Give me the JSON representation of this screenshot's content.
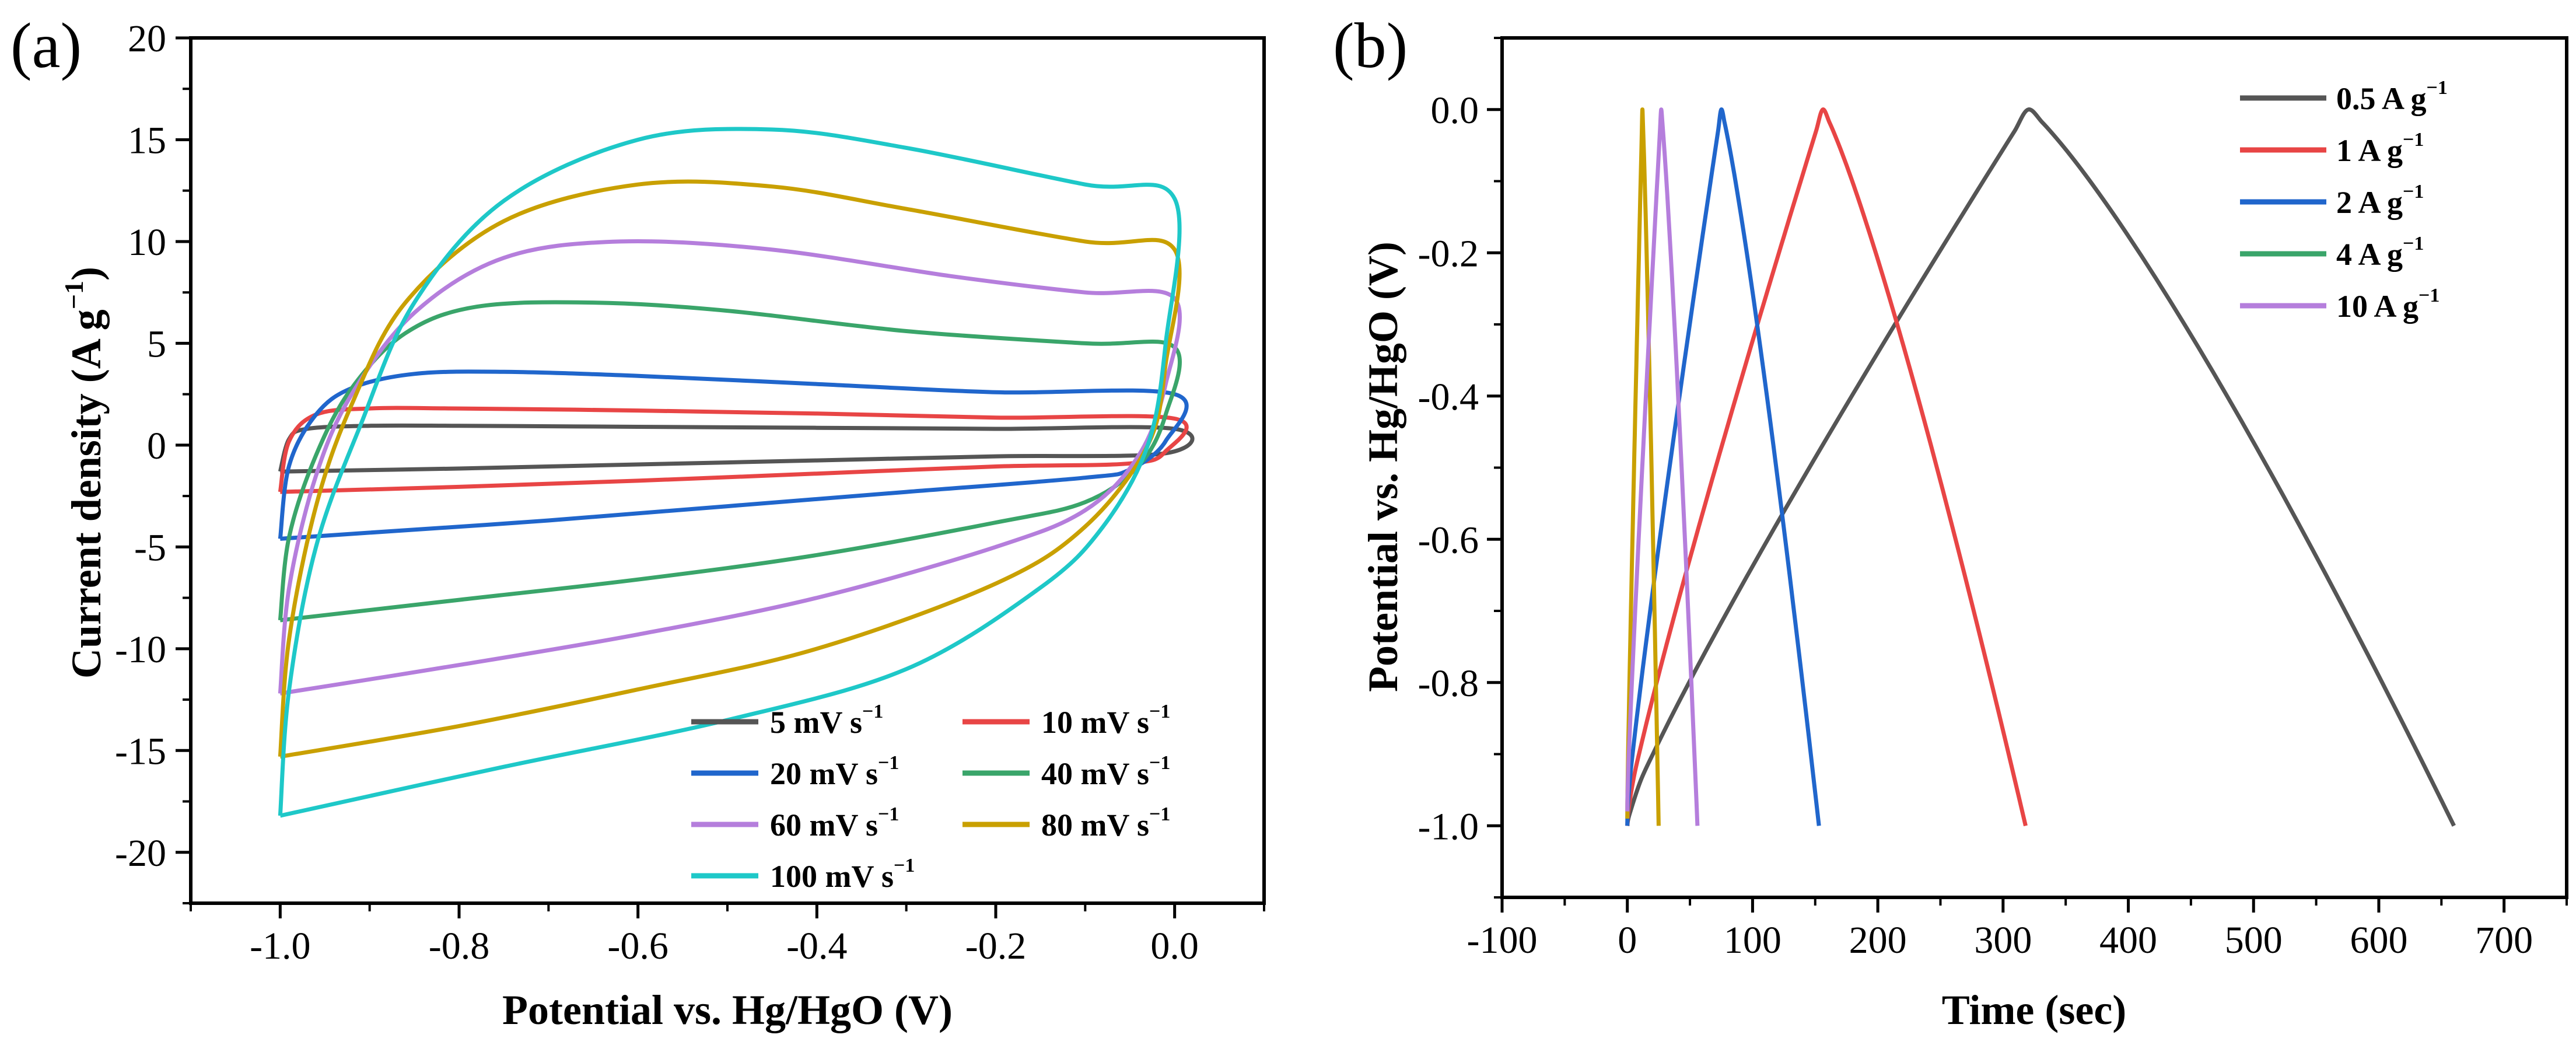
{
  "chart_data": [
    {
      "type": "line",
      "panel_label": "(a)",
      "xlabel": "Potential vs. Hg/HgO (V)",
      "ylabel": "Current density (A g",
      "ylabel_sup": "−1",
      "ylabel_end": ")",
      "xlim": [
        -1.1,
        0.1
      ],
      "ylim": [
        -22.5,
        20
      ],
      "xticks": [
        -1.0,
        -0.8,
        -0.6,
        -0.4,
        -0.2,
        0.0
      ],
      "xtick_labels": [
        "-1.0",
        "-0.8",
        "-0.6",
        "-0.4",
        "-0.2",
        "0.0"
      ],
      "yticks": [
        -20,
        -15,
        -10,
        -5,
        0,
        5,
        10,
        15,
        20
      ],
      "ytick_labels": [
        "-20",
        "-15",
        "-10",
        "-5",
        "0",
        "5",
        "10",
        "15",
        "20"
      ],
      "legend_position": "bottom-right",
      "series": [
        {
          "name": "5 mV s",
          "unit_sup": "−1",
          "color": "#555555",
          "anodic": [
            [
              -1.0,
              -1.3
            ],
            [
              -0.99,
              0.3
            ],
            [
              -0.97,
              0.8
            ],
            [
              -0.9,
              0.95
            ],
            [
              -0.8,
              0.95
            ],
            [
              -0.6,
              0.9
            ],
            [
              -0.4,
              0.85
            ],
            [
              -0.2,
              0.8
            ],
            [
              0.0,
              0.8
            ]
          ],
          "cathodic": [
            [
              0.0,
              0.8
            ],
            [
              -0.01,
              -0.4
            ],
            [
              -0.2,
              -0.55
            ],
            [
              -0.4,
              -0.75
            ],
            [
              -0.6,
              -0.95
            ],
            [
              -0.8,
              -1.15
            ],
            [
              -1.0,
              -1.3
            ]
          ]
        },
        {
          "name": "10 mV s",
          "unit_sup": "−1",
          "color": "#e84545",
          "anodic": [
            [
              -1.0,
              -2.3
            ],
            [
              -0.99,
              0.2
            ],
            [
              -0.96,
              1.5
            ],
            [
              -0.9,
              1.8
            ],
            [
              -0.8,
              1.8
            ],
            [
              -0.6,
              1.7
            ],
            [
              -0.4,
              1.55
            ],
            [
              -0.2,
              1.35
            ],
            [
              0.0,
              1.3
            ]
          ],
          "cathodic": [
            [
              0.0,
              1.3
            ],
            [
              -0.01,
              -0.3
            ],
            [
              -0.05,
              -0.9
            ],
            [
              -0.2,
              -1.05
            ],
            [
              -0.4,
              -1.4
            ],
            [
              -0.6,
              -1.75
            ],
            [
              -0.8,
              -2.05
            ],
            [
              -1.0,
              -2.3
            ]
          ]
        },
        {
          "name": "20 mV s",
          "unit_sup": "−1",
          "color": "#2066cc",
          "anodic": [
            [
              -1.0,
              -4.6
            ],
            [
              -0.99,
              -1.0
            ],
            [
              -0.96,
              1.5
            ],
            [
              -0.92,
              2.8
            ],
            [
              -0.85,
              3.5
            ],
            [
              -0.75,
              3.6
            ],
            [
              -0.6,
              3.4
            ],
            [
              -0.4,
              3.0
            ],
            [
              -0.2,
              2.6
            ],
            [
              0.0,
              2.5
            ]
          ],
          "cathodic": [
            [
              0.0,
              2.5
            ],
            [
              -0.01,
              0.2
            ],
            [
              -0.05,
              -1.2
            ],
            [
              -0.1,
              -1.6
            ],
            [
              -0.3,
              -2.3
            ],
            [
              -0.5,
              -3.0
            ],
            [
              -0.7,
              -3.7
            ],
            [
              -0.9,
              -4.3
            ],
            [
              -1.0,
              -4.6
            ]
          ]
        },
        {
          "name": "40 mV s",
          "unit_sup": "−1",
          "color": "#3aa56a",
          "anodic": [
            [
              -1.0,
              -8.6
            ],
            [
              -0.99,
              -4.5
            ],
            [
              -0.96,
              -0.5
            ],
            [
              -0.92,
              2.8
            ],
            [
              -0.86,
              5.5
            ],
            [
              -0.78,
              6.8
            ],
            [
              -0.65,
              7.0
            ],
            [
              -0.5,
              6.6
            ],
            [
              -0.3,
              5.6
            ],
            [
              -0.1,
              5.0
            ],
            [
              0.0,
              4.8
            ]
          ],
          "cathodic": [
            [
              0.0,
              4.8
            ],
            [
              -0.01,
              1.5
            ],
            [
              -0.04,
              -1.0
            ],
            [
              -0.1,
              -2.8
            ],
            [
              -0.2,
              -3.8
            ],
            [
              -0.4,
              -5.4
            ],
            [
              -0.6,
              -6.6
            ],
            [
              -0.8,
              -7.6
            ],
            [
              -1.0,
              -8.6
            ]
          ]
        },
        {
          "name": "60 mV s",
          "unit_sup": "−1",
          "color": "#b57edc",
          "anodic": [
            [
              -1.0,
              -12.2
            ],
            [
              -0.99,
              -7.0
            ],
            [
              -0.96,
              -1.5
            ],
            [
              -0.92,
              2.5
            ],
            [
              -0.85,
              6.5
            ],
            [
              -0.75,
              9.2
            ],
            [
              -0.62,
              10.0
            ],
            [
              -0.45,
              9.6
            ],
            [
              -0.25,
              8.3
            ],
            [
              -0.1,
              7.5
            ],
            [
              0.0,
              7.2
            ]
          ],
          "cathodic": [
            [
              0.0,
              7.2
            ],
            [
              -0.01,
              3.0
            ],
            [
              -0.04,
              -0.5
            ],
            [
              -0.1,
              -3.2
            ],
            [
              -0.2,
              -5.0
            ],
            [
              -0.4,
              -7.5
            ],
            [
              -0.6,
              -9.3
            ],
            [
              -0.8,
              -10.8
            ],
            [
              -1.0,
              -12.2
            ]
          ]
        },
        {
          "name": "80 mV s",
          "unit_sup": "−1",
          "color": "#c9a000",
          "anodic": [
            [
              -1.0,
              -15.3
            ],
            [
              -0.99,
              -9.5
            ],
            [
              -0.96,
              -3.0
            ],
            [
              -0.92,
              2.0
            ],
            [
              -0.86,
              7.0
            ],
            [
              -0.75,
              11.0
            ],
            [
              -0.6,
              12.8
            ],
            [
              -0.45,
              12.7
            ],
            [
              -0.3,
              11.6
            ],
            [
              -0.1,
              10.0
            ],
            [
              0.0,
              9.6
            ]
          ],
          "cathodic": [
            [
              0.0,
              9.6
            ],
            [
              -0.01,
              4.0
            ],
            [
              -0.03,
              0.0
            ],
            [
              -0.1,
              -4.0
            ],
            [
              -0.2,
              -6.8
            ],
            [
              -0.4,
              -10.0
            ],
            [
              -0.6,
              -12.0
            ],
            [
              -0.8,
              -13.8
            ],
            [
              -1.0,
              -15.3
            ]
          ]
        },
        {
          "name": "100 mV s",
          "unit_sup": "−1",
          "color": "#1ec8c8",
          "anodic": [
            [
              -1.0,
              -18.2
            ],
            [
              -0.99,
              -12.0
            ],
            [
              -0.96,
              -5.0
            ],
            [
              -0.91,
              1.0
            ],
            [
              -0.85,
              7.0
            ],
            [
              -0.75,
              12.0
            ],
            [
              -0.6,
              15.0
            ],
            [
              -0.45,
              15.5
            ],
            [
              -0.3,
              14.6
            ],
            [
              -0.1,
              12.8
            ],
            [
              0.0,
              12.1
            ]
          ],
          "cathodic": [
            [
              0.0,
              12.1
            ],
            [
              -0.01,
              5.0
            ],
            [
              -0.03,
              0.0
            ],
            [
              -0.08,
              -4.0
            ],
            [
              -0.15,
              -7.0
            ],
            [
              -0.3,
              -11.0
            ],
            [
              -0.5,
              -13.5
            ],
            [
              -0.75,
              -15.8
            ],
            [
              -1.0,
              -18.2
            ]
          ]
        }
      ]
    },
    {
      "type": "line",
      "panel_label": "(b)",
      "xlabel": "Time (sec)",
      "ylabel": "Potential vs. Hg/HgO (V)",
      "xlim": [
        -100,
        750
      ],
      "ylim": [
        -1.1,
        0.1
      ],
      "xticks": [
        -100,
        0,
        100,
        200,
        300,
        400,
        500,
        600,
        700
      ],
      "xtick_labels": [
        "-100",
        "0",
        "100",
        "200",
        "300",
        "400",
        "500",
        "600",
        "700"
      ],
      "yticks": [
        0.0,
        -0.2,
        -0.4,
        -0.6,
        -0.8,
        -1.0
      ],
      "ytick_labels": [
        "0.0",
        "-0.2",
        "-0.4",
        "-0.6",
        "-0.8",
        "-1.0"
      ],
      "legend_position": "top-right",
      "series": [
        {
          "name": "0.5 A g",
          "unit_sup": "−1",
          "color": "#555555",
          "t_start": 0,
          "t_peak": 320,
          "t_end": 660,
          "v_start": -1.0,
          "v_start_drop": -0.985
        },
        {
          "name": "1 A g",
          "unit_sup": "−1",
          "color": "#e84545",
          "t_start": 0,
          "t_peak": 156,
          "t_end": 318,
          "v_start": -1.0,
          "v_start_drop": -0.98
        },
        {
          "name": "2 A g",
          "unit_sup": "−1",
          "color": "#2066cc",
          "t_start": 0,
          "t_peak": 75,
          "t_end": 153,
          "v_start": -1.0,
          "v_start_drop": -0.975
        },
        {
          "name": "4 A g",
          "unit_sup": "−1",
          "color": "#3aa56a",
          "t_start": 0,
          "t_peak": 12,
          "t_end": 25,
          "v_start": -0.99,
          "v_start_drop": -0.97,
          "draw_color": "#c9a000"
        },
        {
          "name": "10 A g",
          "unit_sup": "−1",
          "color": "#b57edc",
          "t_start": 0,
          "t_peak": 27,
          "t_end": 56,
          "v_start": -0.98,
          "v_start_drop": -0.96
        }
      ]
    }
  ]
}
